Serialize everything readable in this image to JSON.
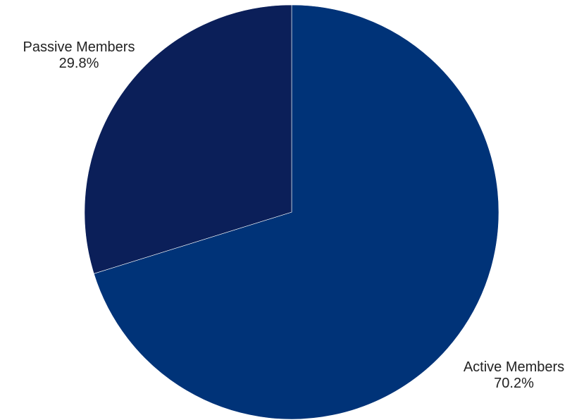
{
  "chart_data": {
    "type": "pie",
    "title": "",
    "start_angle_deg": 0,
    "direction": "clockwise",
    "slices": [
      {
        "label": "Active Members",
        "value": 70.2,
        "value_label": "70.2%",
        "color": "#003378"
      },
      {
        "label": "Passive Members",
        "value": 29.8,
        "value_label": "29.8%",
        "color": "#0b1f59"
      }
    ]
  }
}
